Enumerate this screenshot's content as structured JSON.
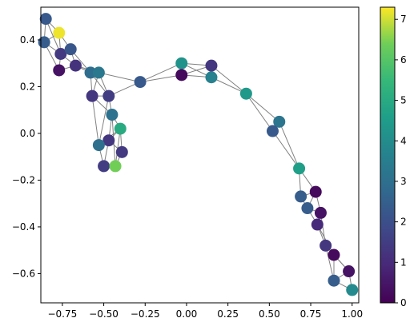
{
  "chart_data": {
    "type": "scatter",
    "title": "",
    "xlabel": "",
    "ylabel": "",
    "xlim": [
      -0.88,
      1.04
    ],
    "ylim": [
      -0.725,
      0.54
    ],
    "x_ticks": [
      "−0.75",
      "−0.50",
      "−0.25",
      "0.00",
      "0.25",
      "0.50",
      "0.75",
      "1.00"
    ],
    "x_tick_values": [
      -0.75,
      -0.5,
      -0.25,
      0.0,
      0.25,
      0.5,
      0.75,
      1.0
    ],
    "y_ticks": [
      "0.4",
      "0.2",
      "0.0",
      "−0.2",
      "−0.4",
      "−0.6"
    ],
    "y_tick_values": [
      0.4,
      0.2,
      0.0,
      -0.2,
      -0.4,
      -0.6
    ],
    "colorbar": {
      "colormap": "viridis",
      "range": [
        0,
        7.3
      ],
      "ticks": [
        "0",
        "1",
        "2",
        "3",
        "4",
        "5",
        "6",
        "7"
      ],
      "tick_values": [
        0,
        1,
        2,
        3,
        4,
        5,
        6,
        7
      ]
    },
    "edge_color": "#808080",
    "nodes": [
      {
        "x": -0.85,
        "y": 0.49,
        "v": 2.3
      },
      {
        "x": -0.86,
        "y": 0.39,
        "v": 2.4
      },
      {
        "x": -0.77,
        "y": 0.43,
        "v": 7.2
      },
      {
        "x": -0.76,
        "y": 0.34,
        "v": 1.4
      },
      {
        "x": -0.7,
        "y": 0.36,
        "v": 2.2
      },
      {
        "x": -0.77,
        "y": 0.27,
        "v": 0.4
      },
      {
        "x": -0.67,
        "y": 0.29,
        "v": 1.2
      },
      {
        "x": -0.58,
        "y": 0.26,
        "v": 2.9
      },
      {
        "x": -0.53,
        "y": 0.26,
        "v": 3.3
      },
      {
        "x": -0.57,
        "y": 0.16,
        "v": 1.3
      },
      {
        "x": -0.47,
        "y": 0.16,
        "v": 1.5
      },
      {
        "x": -0.45,
        "y": 0.08,
        "v": 3.1
      },
      {
        "x": -0.4,
        "y": 0.02,
        "v": 5.0
      },
      {
        "x": -0.47,
        "y": -0.03,
        "v": 1.3
      },
      {
        "x": -0.53,
        "y": -0.05,
        "v": 3.0
      },
      {
        "x": -0.39,
        "y": -0.08,
        "v": 1.4
      },
      {
        "x": -0.5,
        "y": -0.14,
        "v": 1.5
      },
      {
        "x": -0.43,
        "y": -0.14,
        "v": 6.4
      },
      {
        "x": -0.28,
        "y": 0.22,
        "v": 2.3
      },
      {
        "x": -0.03,
        "y": 0.3,
        "v": 4.2
      },
      {
        "x": -0.03,
        "y": 0.25,
        "v": 0.2
      },
      {
        "x": 0.15,
        "y": 0.29,
        "v": 1.3
      },
      {
        "x": 0.15,
        "y": 0.24,
        "v": 3.6
      },
      {
        "x": 0.36,
        "y": 0.17,
        "v": 4.4
      },
      {
        "x": 0.56,
        "y": 0.05,
        "v": 3.2
      },
      {
        "x": 0.52,
        "y": 0.01,
        "v": 2.3
      },
      {
        "x": 0.68,
        "y": -0.15,
        "v": 4.6
      },
      {
        "x": 0.69,
        "y": -0.27,
        "v": 2.4
      },
      {
        "x": 0.78,
        "y": -0.25,
        "v": 0.2
      },
      {
        "x": 0.73,
        "y": -0.32,
        "v": 2.4
      },
      {
        "x": 0.81,
        "y": -0.34,
        "v": 0.4
      },
      {
        "x": 0.79,
        "y": -0.39,
        "v": 1.0
      },
      {
        "x": 0.84,
        "y": -0.48,
        "v": 1.3
      },
      {
        "x": 0.89,
        "y": -0.52,
        "v": 0.2
      },
      {
        "x": 0.98,
        "y": -0.59,
        "v": 0.4
      },
      {
        "x": 0.89,
        "y": -0.63,
        "v": 2.4
      },
      {
        "x": 1.0,
        "y": -0.67,
        "v": 3.9
      }
    ],
    "edges": [
      [
        0,
        1
      ],
      [
        0,
        2
      ],
      [
        0,
        3
      ],
      [
        1,
        2
      ],
      [
        1,
        3
      ],
      [
        2,
        3
      ],
      [
        2,
        4
      ],
      [
        3,
        4
      ],
      [
        1,
        5
      ],
      [
        3,
        5
      ],
      [
        4,
        6
      ],
      [
        5,
        6
      ],
      [
        3,
        6
      ],
      [
        6,
        7
      ],
      [
        6,
        8
      ],
      [
        4,
        7
      ],
      [
        7,
        8
      ],
      [
        7,
        9
      ],
      [
        8,
        9
      ],
      [
        7,
        10
      ],
      [
        8,
        10
      ],
      [
        9,
        10
      ],
      [
        10,
        11
      ],
      [
        9,
        11
      ],
      [
        11,
        12
      ],
      [
        11,
        13
      ],
      [
        12,
        13
      ],
      [
        12,
        14
      ],
      [
        13,
        14
      ],
      [
        13,
        15
      ],
      [
        12,
        15
      ],
      [
        14,
        16
      ],
      [
        13,
        16
      ],
      [
        15,
        17
      ],
      [
        16,
        17
      ],
      [
        12,
        17
      ],
      [
        11,
        17
      ],
      [
        10,
        14
      ],
      [
        9,
        14
      ],
      [
        8,
        18
      ],
      [
        10,
        18
      ],
      [
        18,
        19
      ],
      [
        18,
        20
      ],
      [
        19,
        20
      ],
      [
        19,
        21
      ],
      [
        20,
        21
      ],
      [
        19,
        22
      ],
      [
        20,
        22
      ],
      [
        21,
        22
      ],
      [
        21,
        23
      ],
      [
        22,
        23
      ],
      [
        23,
        24
      ],
      [
        23,
        25
      ],
      [
        24,
        25
      ],
      [
        24,
        26
      ],
      [
        25,
        26
      ],
      [
        26,
        27
      ],
      [
        26,
        28
      ],
      [
        27,
        28
      ],
      [
        27,
        29
      ],
      [
        28,
        29
      ],
      [
        28,
        30
      ],
      [
        29,
        30
      ],
      [
        29,
        31
      ],
      [
        30,
        31
      ],
      [
        31,
        32
      ],
      [
        30,
        32
      ],
      [
        32,
        33
      ],
      [
        31,
        33
      ],
      [
        32,
        34
      ],
      [
        33,
        34
      ],
      [
        33,
        35
      ],
      [
        34,
        35
      ],
      [
        35,
        36
      ],
      [
        34,
        36
      ],
      [
        32,
        35
      ]
    ]
  }
}
